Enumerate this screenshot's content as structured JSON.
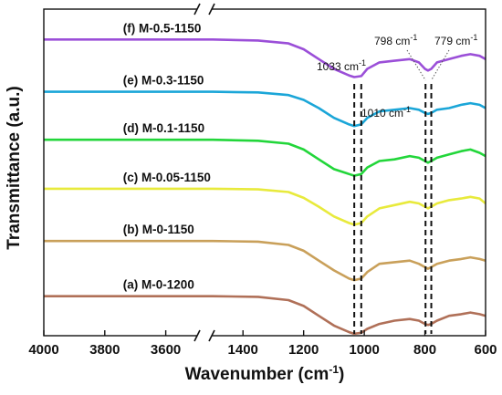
{
  "chart_data": {
    "type": "line",
    "title": "",
    "xlabel": "Wavenumber (cm-1)",
    "xlabel_main": "Wavenumber (cm",
    "xlabel_sup": "-1",
    "xlabel_end": ")",
    "ylabel": "Transmittance (a.u.)",
    "x_axis_break": true,
    "x_segments": [
      {
        "range": [
          4000,
          3500
        ],
        "ticks": [
          4000,
          3800,
          3600
        ]
      },
      {
        "range": [
          1500,
          600
        ],
        "ticks": [
          1400,
          1200,
          1000,
          800,
          600
        ]
      }
    ],
    "y_ticks_shown": false,
    "grid": false,
    "reference_lines": [
      1033,
      1010,
      798,
      779
    ],
    "annotations": [
      {
        "text": "1033 cm-1",
        "main": "1033 cm",
        "sup": "-1",
        "x": 1033
      },
      {
        "text": "1010 cm-1",
        "main": "1010 cm",
        "sup": "-1",
        "x": 1010
      },
      {
        "text": "798 cm-1",
        "main": "798 cm",
        "sup": "-1",
        "x": 798
      },
      {
        "text": "779 cm-1",
        "main": "779 cm",
        "sup": "-1",
        "x": 779
      }
    ],
    "series": [
      {
        "name": "(f) M-0.5-1150",
        "color": "#9b4fd8",
        "baseline": 0.907,
        "x": [
          4000,
          3500,
          1500,
          1350,
          1250,
          1200,
          1150,
          1100,
          1050,
          1033,
          1010,
          990,
          950,
          900,
          850,
          820,
          800,
          790,
          779,
          760,
          720,
          680,
          650,
          620,
          600
        ],
        "y": [
          0,
          0,
          0,
          -0.003,
          -0.012,
          -0.03,
          -0.06,
          -0.09,
          -0.11,
          -0.115,
          -0.112,
          -0.09,
          -0.07,
          -0.065,
          -0.06,
          -0.07,
          -0.09,
          -0.095,
          -0.09,
          -0.07,
          -0.06,
          -0.05,
          -0.045,
          -0.05,
          -0.06
        ]
      },
      {
        "name": "(e) M-0.3-1150",
        "color": "#1ba6d8",
        "baseline": 0.747,
        "x": [
          4000,
          3500,
          1500,
          1350,
          1250,
          1200,
          1150,
          1100,
          1050,
          1033,
          1010,
          990,
          950,
          900,
          850,
          820,
          800,
          790,
          779,
          760,
          720,
          680,
          650,
          620,
          600
        ],
        "y": [
          0,
          0,
          0,
          -0.002,
          -0.01,
          -0.025,
          -0.05,
          -0.08,
          -0.1,
          -0.105,
          -0.1,
          -0.08,
          -0.06,
          -0.055,
          -0.05,
          -0.055,
          -0.065,
          -0.068,
          -0.065,
          -0.055,
          -0.05,
          -0.04,
          -0.035,
          -0.04,
          -0.05
        ]
      },
      {
        "name": "(d) M-0.1-1150",
        "color": "#22d63a",
        "baseline": 0.6,
        "x": [
          4000,
          3500,
          1500,
          1350,
          1250,
          1200,
          1150,
          1100,
          1050,
          1033,
          1010,
          990,
          950,
          900,
          850,
          820,
          800,
          790,
          779,
          760,
          720,
          680,
          650,
          620,
          600
        ],
        "y": [
          0,
          0,
          0,
          -0.003,
          -0.012,
          -0.03,
          -0.06,
          -0.09,
          -0.105,
          -0.11,
          -0.105,
          -0.085,
          -0.065,
          -0.06,
          -0.05,
          -0.055,
          -0.065,
          -0.07,
          -0.065,
          -0.055,
          -0.045,
          -0.035,
          -0.03,
          -0.04,
          -0.05
        ]
      },
      {
        "name": "(c) M-0.05-1150",
        "color": "#e8ea3c",
        "baseline": 0.45,
        "x": [
          4000,
          3500,
          1500,
          1350,
          1250,
          1200,
          1150,
          1100,
          1050,
          1033,
          1010,
          990,
          950,
          900,
          850,
          820,
          800,
          790,
          779,
          760,
          720,
          680,
          650,
          620,
          600
        ],
        "y": [
          0,
          0,
          0,
          -0.002,
          -0.01,
          -0.028,
          -0.055,
          -0.085,
          -0.105,
          -0.11,
          -0.105,
          -0.085,
          -0.06,
          -0.05,
          -0.04,
          -0.045,
          -0.055,
          -0.06,
          -0.055,
          -0.045,
          -0.035,
          -0.03,
          -0.025,
          -0.03,
          -0.045
        ]
      },
      {
        "name": "(b) M-0-1150",
        "color": "#c9a05a",
        "baseline": 0.29,
        "x": [
          4000,
          3500,
          1500,
          1350,
          1250,
          1200,
          1150,
          1100,
          1050,
          1033,
          1010,
          990,
          950,
          900,
          850,
          820,
          800,
          790,
          779,
          760,
          720,
          680,
          650,
          620,
          600
        ],
        "y": [
          0,
          0,
          0,
          -0.002,
          -0.012,
          -0.03,
          -0.06,
          -0.09,
          -0.115,
          -0.12,
          -0.115,
          -0.095,
          -0.07,
          -0.065,
          -0.06,
          -0.07,
          -0.08,
          -0.085,
          -0.08,
          -0.07,
          -0.06,
          -0.055,
          -0.05,
          -0.055,
          -0.06
        ]
      },
      {
        "name": "(a) M-0-1200",
        "color": "#b07058",
        "baseline": 0.121,
        "x": [
          4000,
          3500,
          1500,
          1350,
          1250,
          1200,
          1150,
          1100,
          1050,
          1033,
          1010,
          990,
          950,
          900,
          850,
          820,
          800,
          790,
          779,
          760,
          720,
          680,
          650,
          620,
          600
        ],
        "y": [
          0,
          0,
          0,
          -0.002,
          -0.012,
          -0.03,
          -0.06,
          -0.09,
          -0.11,
          -0.115,
          -0.112,
          -0.1,
          -0.085,
          -0.075,
          -0.07,
          -0.075,
          -0.085,
          -0.088,
          -0.085,
          -0.075,
          -0.06,
          -0.055,
          -0.05,
          -0.055,
          -0.06
        ]
      }
    ]
  }
}
